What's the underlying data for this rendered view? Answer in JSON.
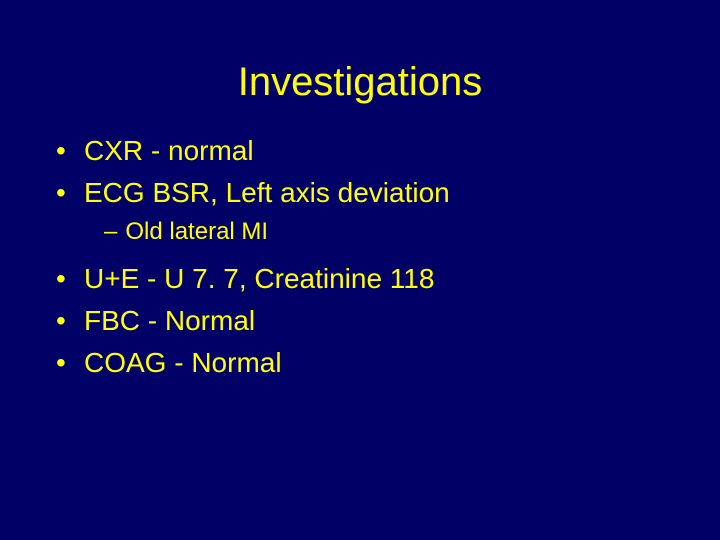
{
  "background_color": "#000066",
  "text_color": "#ffff00",
  "title_fontsize": 40,
  "bullet_fontsize": 28,
  "sub_fontsize": 24,
  "title": "Investigations",
  "bullets": [
    {
      "text": "CXR - normal"
    },
    {
      "text": "ECG BSR, Left axis deviation",
      "sub": [
        "Old lateral MI"
      ]
    },
    {
      "text": "U+E - U 7. 7, Creatinine 118"
    },
    {
      "text": "FBC  - Normal"
    },
    {
      "text": "COAG - Normal"
    }
  ]
}
